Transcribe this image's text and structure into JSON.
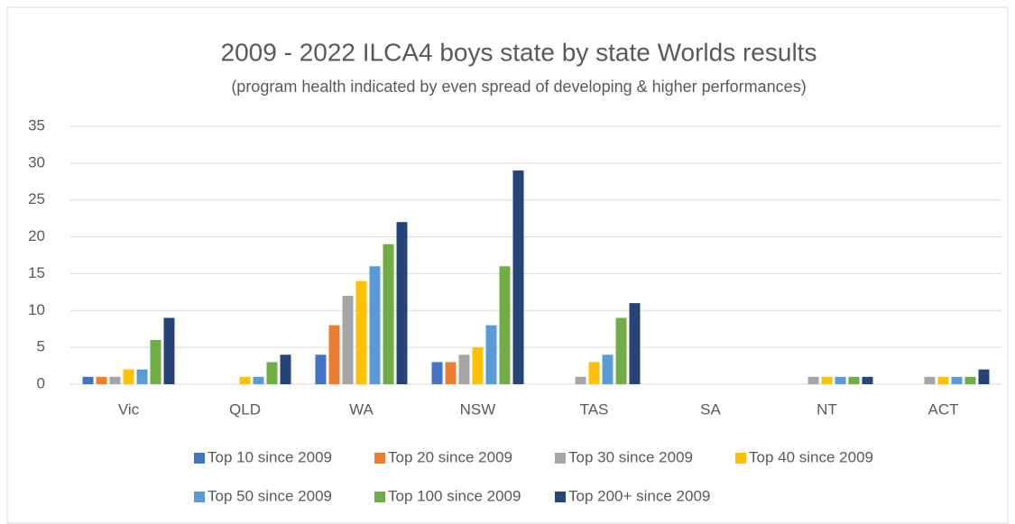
{
  "chart_data": {
    "type": "bar",
    "title": "2009 - 2022 ILCA4 boys state by state Worlds results",
    "subtitle": "(program health indicated by even spread of developing & higher performances)",
    "categories": [
      "Vic",
      "QLD",
      "WA",
      "NSW",
      "TAS",
      "SA",
      "NT",
      "ACT"
    ],
    "series": [
      {
        "name": "Top 10 since 2009",
        "color": "#4472c4",
        "values": [
          1,
          0,
          4,
          3,
          0,
          0,
          0,
          0
        ]
      },
      {
        "name": "Top 20 since 2009",
        "color": "#ed7d31",
        "values": [
          1,
          0,
          8,
          3,
          0,
          0,
          0,
          0
        ]
      },
      {
        "name": "Top 30 since 2009",
        "color": "#a5a5a5",
        "values": [
          1,
          0,
          12,
          4,
          1,
          0,
          1,
          1
        ]
      },
      {
        "name": "Top 40 since 2009",
        "color": "#ffc000",
        "values": [
          2,
          1,
          14,
          5,
          3,
          0,
          1,
          1
        ]
      },
      {
        "name": "Top 50 since 2009",
        "color": "#5b9bd5",
        "values": [
          2,
          1,
          16,
          8,
          4,
          0,
          1,
          1
        ]
      },
      {
        "name": "Top 100 since 2009",
        "color": "#70ad47",
        "values": [
          6,
          3,
          19,
          16,
          9,
          0,
          1,
          1
        ]
      },
      {
        "name": "Top 200+ since 2009",
        "color": "#264478",
        "values": [
          9,
          4,
          22,
          29,
          11,
          0,
          1,
          2
        ]
      }
    ],
    "ylim": [
      0,
      35
    ],
    "yticks": [
      0,
      5,
      10,
      15,
      20,
      25,
      30,
      35
    ],
    "grid": true,
    "legend": "bottom"
  }
}
